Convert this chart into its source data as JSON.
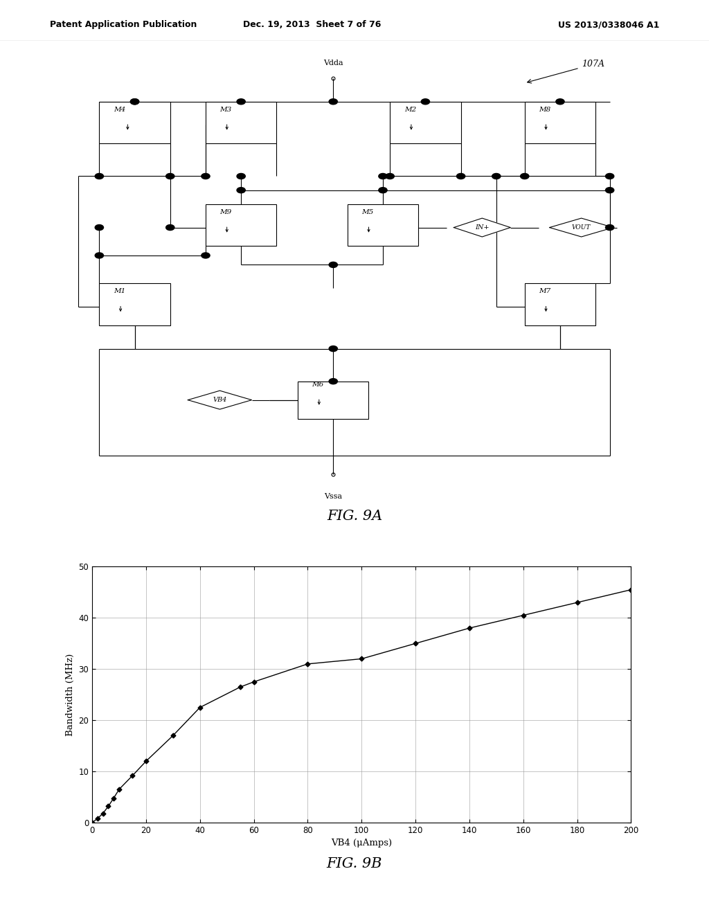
{
  "header_left": "Patent Application Publication",
  "header_mid": "Dec. 19, 2013  Sheet 7 of 76",
  "header_right": "US 2013/0338046 A1",
  "fig9a_label": "FIG. 9A",
  "fig9b_label": "FIG. 9B",
  "label_107A": "107A",
  "graph_xlabel": "VB4 (μAmps)",
  "graph_ylabel": "Bandwidth (MHz)",
  "graph_xlim": [
    0,
    200
  ],
  "graph_ylim": [
    0,
    50
  ],
  "graph_xticks": [
    0,
    20,
    40,
    60,
    80,
    100,
    120,
    140,
    160,
    180,
    200
  ],
  "graph_yticks": [
    0,
    10,
    20,
    30,
    40,
    50
  ],
  "data_x": [
    0,
    2,
    4,
    6,
    8,
    10,
    15,
    20,
    30,
    40,
    55,
    60,
    80,
    100,
    120,
    140,
    160,
    180,
    200
  ],
  "data_y": [
    0,
    0.8,
    1.8,
    3.2,
    4.8,
    6.5,
    9.2,
    12.0,
    17.0,
    22.5,
    26.5,
    27.5,
    31.0,
    32.0,
    35.0,
    38.0,
    40.5,
    43.0,
    45.5
  ],
  "bg_color": "#ffffff",
  "line_color": "#000000",
  "marker_color": "#000000",
  "grid_color": "#999999"
}
